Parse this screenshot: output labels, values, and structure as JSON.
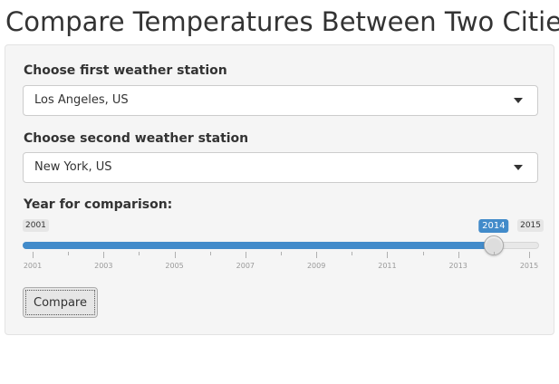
{
  "page": {
    "title": "Compare Temperatures Between Two Cities"
  },
  "form": {
    "first_station": {
      "label": "Choose first weather station",
      "value": "Los Angeles, US",
      "icon": "chevron-down-icon"
    },
    "second_station": {
      "label": "Choose second weather station",
      "value": "New York, US",
      "icon": "chevron-down-icon"
    },
    "year": {
      "label": "Year for comparison:",
      "min": 2001,
      "max": 2015,
      "value": 2014,
      "min_label": "2001",
      "max_label": "2015",
      "value_label": "2014",
      "ticks": [
        "2001",
        "2003",
        "2005",
        "2007",
        "2009",
        "2011",
        "2013",
        "2015"
      ]
    },
    "submit_label": "Compare"
  },
  "colors": {
    "accent": "#428bca",
    "panel": "#f5f5f5",
    "text": "#333333"
  }
}
